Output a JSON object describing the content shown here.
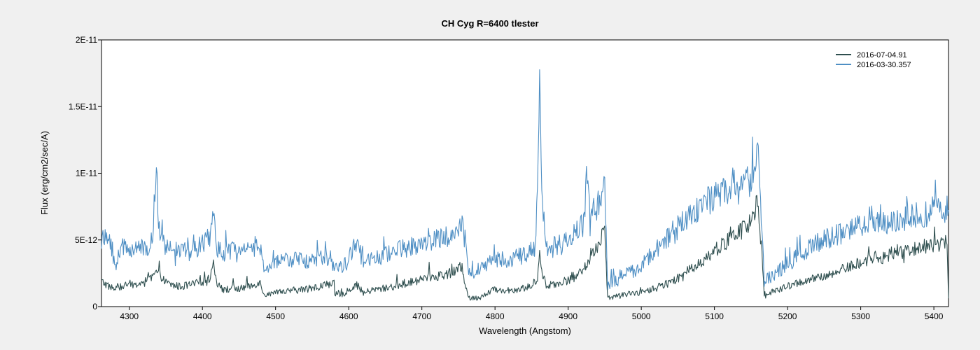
{
  "chart_data": {
    "type": "line",
    "title": "CH Cyg  R=6400  tlester",
    "xlabel": "Wavelength (Angstom)",
    "ylabel": "Flux (erg/cm2/sec/A)",
    "xlim": [
      4262,
      5420
    ],
    "ylim": [
      0,
      2e-11
    ],
    "xticks": [
      4300,
      4400,
      4500,
      4600,
      4700,
      4800,
      4900,
      5000,
      5100,
      5200,
      5300,
      5400
    ],
    "xtick_labels": [
      "4300",
      "4400",
      "4500",
      "4600",
      "4700",
      "4800",
      "4900",
      "5000",
      "5100",
      "5200",
      "5300",
      "5400"
    ],
    "yticks": [
      0,
      5e-12,
      1e-11,
      1.5e-11,
      2e-11
    ],
    "ytick_labels": [
      "0",
      "5E-12",
      "1E-11",
      "1.5E-11",
      "2E-11"
    ],
    "grid": false,
    "legend_position": "top-right",
    "series": [
      {
        "name": "2016-07-04.91",
        "color": "#2f4f4f",
        "x": [
          4262,
          4270,
          4280,
          4290,
          4300,
          4310,
          4320,
          4330,
          4338,
          4340,
          4350,
          4360,
          4370,
          4380,
          4390,
          4400,
          4410,
          4415,
          4420,
          4430,
          4440,
          4450,
          4460,
          4470,
          4478,
          4485,
          4500,
          4520,
          4540,
          4560,
          4578,
          4582,
          4590,
          4600,
          4610,
          4620,
          4630,
          4650,
          4670,
          4690,
          4700,
          4720,
          4740,
          4755,
          4760,
          4765,
          4780,
          4800,
          4810,
          4830,
          4850,
          4858,
          4861,
          4864,
          4870,
          4890,
          4910,
          4925,
          4930,
          4940,
          4950,
          4954,
          4960,
          4980,
          5000,
          5020,
          5040,
          5060,
          5080,
          5100,
          5120,
          5140,
          5155,
          5158,
          5165,
          5168,
          5180,
          5200,
          5220,
          5240,
          5260,
          5280,
          5300,
          5315,
          5330,
          5350,
          5370,
          5390,
          5400,
          5410,
          5418,
          5420
        ],
        "y": [
          1.9e-12,
          1.6e-12,
          1.3e-12,
          1.5e-12,
          1.7e-12,
          1.6e-12,
          1.9e-12,
          2.1e-12,
          2.6e-12,
          2.4e-12,
          1.8e-12,
          1.6e-12,
          1.5e-12,
          1.6e-12,
          1.7e-12,
          1.9e-12,
          2e-12,
          3.4e-12,
          1.8e-12,
          1.2e-12,
          1.4e-12,
          1.3e-12,
          1.5e-12,
          1.6e-12,
          1.9e-12,
          9e-13,
          1e-12,
          1.2e-12,
          1.3e-12,
          1.5e-12,
          1.8e-12,
          8e-13,
          9e-13,
          1.2e-12,
          1.7e-12,
          1e-12,
          1.2e-12,
          1.4e-12,
          1.6e-12,
          1.9e-12,
          2.1e-12,
          2.3e-12,
          2.5e-12,
          3e-12,
          1.5e-12,
          6e-13,
          7e-13,
          1.3e-12,
          1.2e-12,
          1.3e-12,
          1.5e-12,
          2.2e-12,
          4e-12,
          2.6e-12,
          1.6e-12,
          1.8e-12,
          2.2e-12,
          3e-12,
          3.8e-12,
          4.6e-12,
          5.8e-12,
          6e-13,
          7e-13,
          9e-13,
          1.1e-12,
          1.4e-12,
          1.8e-12,
          2.5e-12,
          3.3e-12,
          4.2e-12,
          5e-12,
          5.8e-12,
          6.8e-12,
          8.3e-12,
          4e-12,
          9e-13,
          1.1e-12,
          1.5e-12,
          1.9e-12,
          2.1e-12,
          2.4e-12,
          2.9e-12,
          3.3e-12,
          3.7e-12,
          3.7e-12,
          4e-12,
          4.3e-12,
          4.6e-12,
          4.6e-12,
          4.8e-12,
          5e-12,
          6e-13
        ]
      },
      {
        "name": "2016-03-30.357",
        "color": "#4f8fc4",
        "x": [
          4262,
          4270,
          4275,
          4280,
          4290,
          4300,
          4310,
          4320,
          4330,
          4338,
          4340,
          4345,
          4350,
          4360,
          4370,
          4380,
          4390,
          4400,
          4410,
          4415,
          4420,
          4430,
          4440,
          4450,
          4460,
          4470,
          4478,
          4482,
          4500,
          4520,
          4540,
          4560,
          4578,
          4582,
          4590,
          4600,
          4610,
          4620,
          4640,
          4660,
          4680,
          4700,
          4720,
          4740,
          4755,
          4760,
          4765,
          4770,
          4780,
          4800,
          4820,
          4840,
          4855,
          4858,
          4861,
          4864,
          4870,
          4890,
          4910,
          4922,
          4925,
          4930,
          4940,
          4950,
          4954,
          4960,
          4980,
          5000,
          5020,
          5040,
          5060,
          5080,
          5100,
          5120,
          5140,
          5155,
          5158,
          5162,
          5165,
          5168,
          5180,
          5200,
          5220,
          5240,
          5260,
          5280,
          5300,
          5315,
          5330,
          5350,
          5370,
          5390,
          5400,
          5410,
          5420
        ],
        "y": [
          5e-12,
          5e-12,
          4.9e-12,
          3e-12,
          4.5e-12,
          4.3e-12,
          4.6e-12,
          4.2e-12,
          4.8e-12,
          8.8e-12,
          6e-12,
          5e-12,
          4.5e-12,
          4.2e-12,
          4.4e-12,
          4e-12,
          4.4e-12,
          4.6e-12,
          5.2e-12,
          7e-12,
          4.5e-12,
          3.7e-12,
          4.3e-12,
          3.9e-12,
          4.1e-12,
          4.2e-12,
          5e-12,
          3e-12,
          3.2e-12,
          3.6e-12,
          3.4e-12,
          3.6e-12,
          3.7e-12,
          2.8e-12,
          3e-12,
          3.4e-12,
          4.8e-12,
          3.4e-12,
          3.6e-12,
          4.2e-12,
          4.4e-12,
          4.8e-12,
          5e-12,
          5.3e-12,
          6e-12,
          4.8e-12,
          2.4e-12,
          2.5e-12,
          2.8e-12,
          3.6e-12,
          3.5e-12,
          3.9e-12,
          4.3e-12,
          9e-12,
          1.8e-11,
          8e-12,
          4.5e-12,
          4.6e-12,
          5.6e-12,
          6.2e-12,
          9.8e-12,
          6.8e-12,
          7.5e-12,
          9e-12,
          1.6e-12,
          1.7e-12,
          2.4e-12,
          3.1e-12,
          4.2e-12,
          5.4e-12,
          6.5e-12,
          7.6e-12,
          8.2e-12,
          8.7e-12,
          9e-12,
          1e-11,
          1.24e-11,
          9.5e-12,
          6e-12,
          1.8e-12,
          2.4e-12,
          3.2e-12,
          4e-12,
          4.8e-12,
          5.2e-12,
          5.7e-12,
          6.2e-12,
          6.7e-12,
          6.2e-12,
          6.4e-12,
          6.8e-12,
          7e-12,
          7.3e-12,
          7.4e-12,
          7.3e-12
        ]
      }
    ]
  }
}
